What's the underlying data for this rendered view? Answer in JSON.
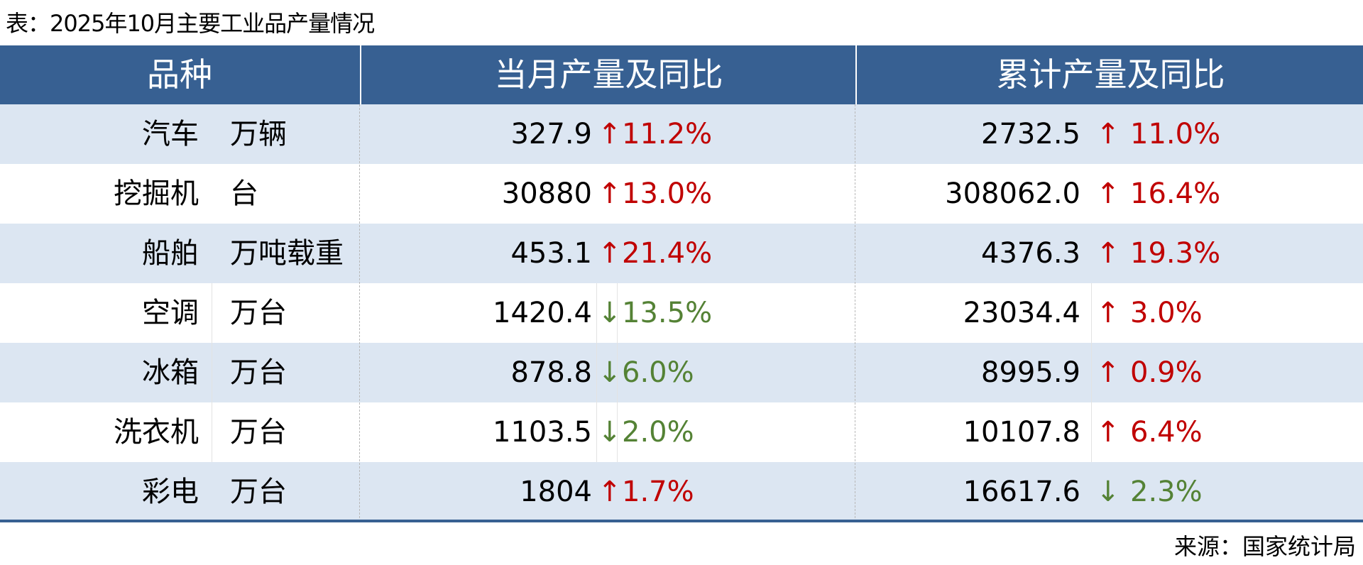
{
  "title": "表：2025年10月主要工业品产量情况",
  "headers": [
    "品种",
    "当月产量及同比",
    "累计产量及同比"
  ],
  "colors": {
    "header": "#376092",
    "band": "#dce6f2",
    "up": "#c00000",
    "down": "#548235"
  },
  "rows": [
    {
      "name": "汽车",
      "unit": "万辆",
      "month_value": "327.9",
      "month_dir": "up",
      "month_arrow": "↑",
      "month_pct": "11.2%",
      "cum_value": "2732.5",
      "cum_dir": "up",
      "cum_arrow": "↑",
      "cum_pct": "11.0%"
    },
    {
      "name": "挖掘机",
      "unit": "台",
      "month_value": "30880",
      "month_dir": "up",
      "month_arrow": "↑",
      "month_pct": "13.0%",
      "cum_value": "308062.0",
      "cum_dir": "up",
      "cum_arrow": "↑",
      "cum_pct": "16.4%"
    },
    {
      "name": "船舶",
      "unit": "万吨载重",
      "month_value": "453.1",
      "month_dir": "up",
      "month_arrow": "↑",
      "month_pct": "21.4%",
      "cum_value": "4376.3",
      "cum_dir": "up",
      "cum_arrow": "↑",
      "cum_pct": "19.3%"
    },
    {
      "name": "空调",
      "unit": "万台",
      "month_value": "1420.4",
      "month_dir": "down",
      "month_arrow": "↓",
      "month_pct": "13.5%",
      "cum_value": "23034.4",
      "cum_dir": "up",
      "cum_arrow": "↑",
      "cum_pct": "3.0%"
    },
    {
      "name": "冰箱",
      "unit": "万台",
      "month_value": "878.8",
      "month_dir": "down",
      "month_arrow": "↓",
      "month_pct": "6.0%",
      "cum_value": "8995.9",
      "cum_dir": "up",
      "cum_arrow": "↑",
      "cum_pct": "0.9%"
    },
    {
      "name": "洗衣机",
      "unit": "万台",
      "month_value": "1103.5",
      "month_dir": "down",
      "month_arrow": "↓",
      "month_pct": "2.0%",
      "cum_value": "10107.8",
      "cum_dir": "up",
      "cum_arrow": "↑",
      "cum_pct": "6.4%"
    },
    {
      "name": "彩电",
      "unit": "万台",
      "month_value": "1804",
      "month_dir": "up",
      "month_arrow": "↑",
      "month_pct": "1.7%",
      "cum_value": "16617.6",
      "cum_dir": "down",
      "cum_arrow": "↓",
      "cum_pct": "2.3%"
    }
  ],
  "source": "来源：国家统计局"
}
